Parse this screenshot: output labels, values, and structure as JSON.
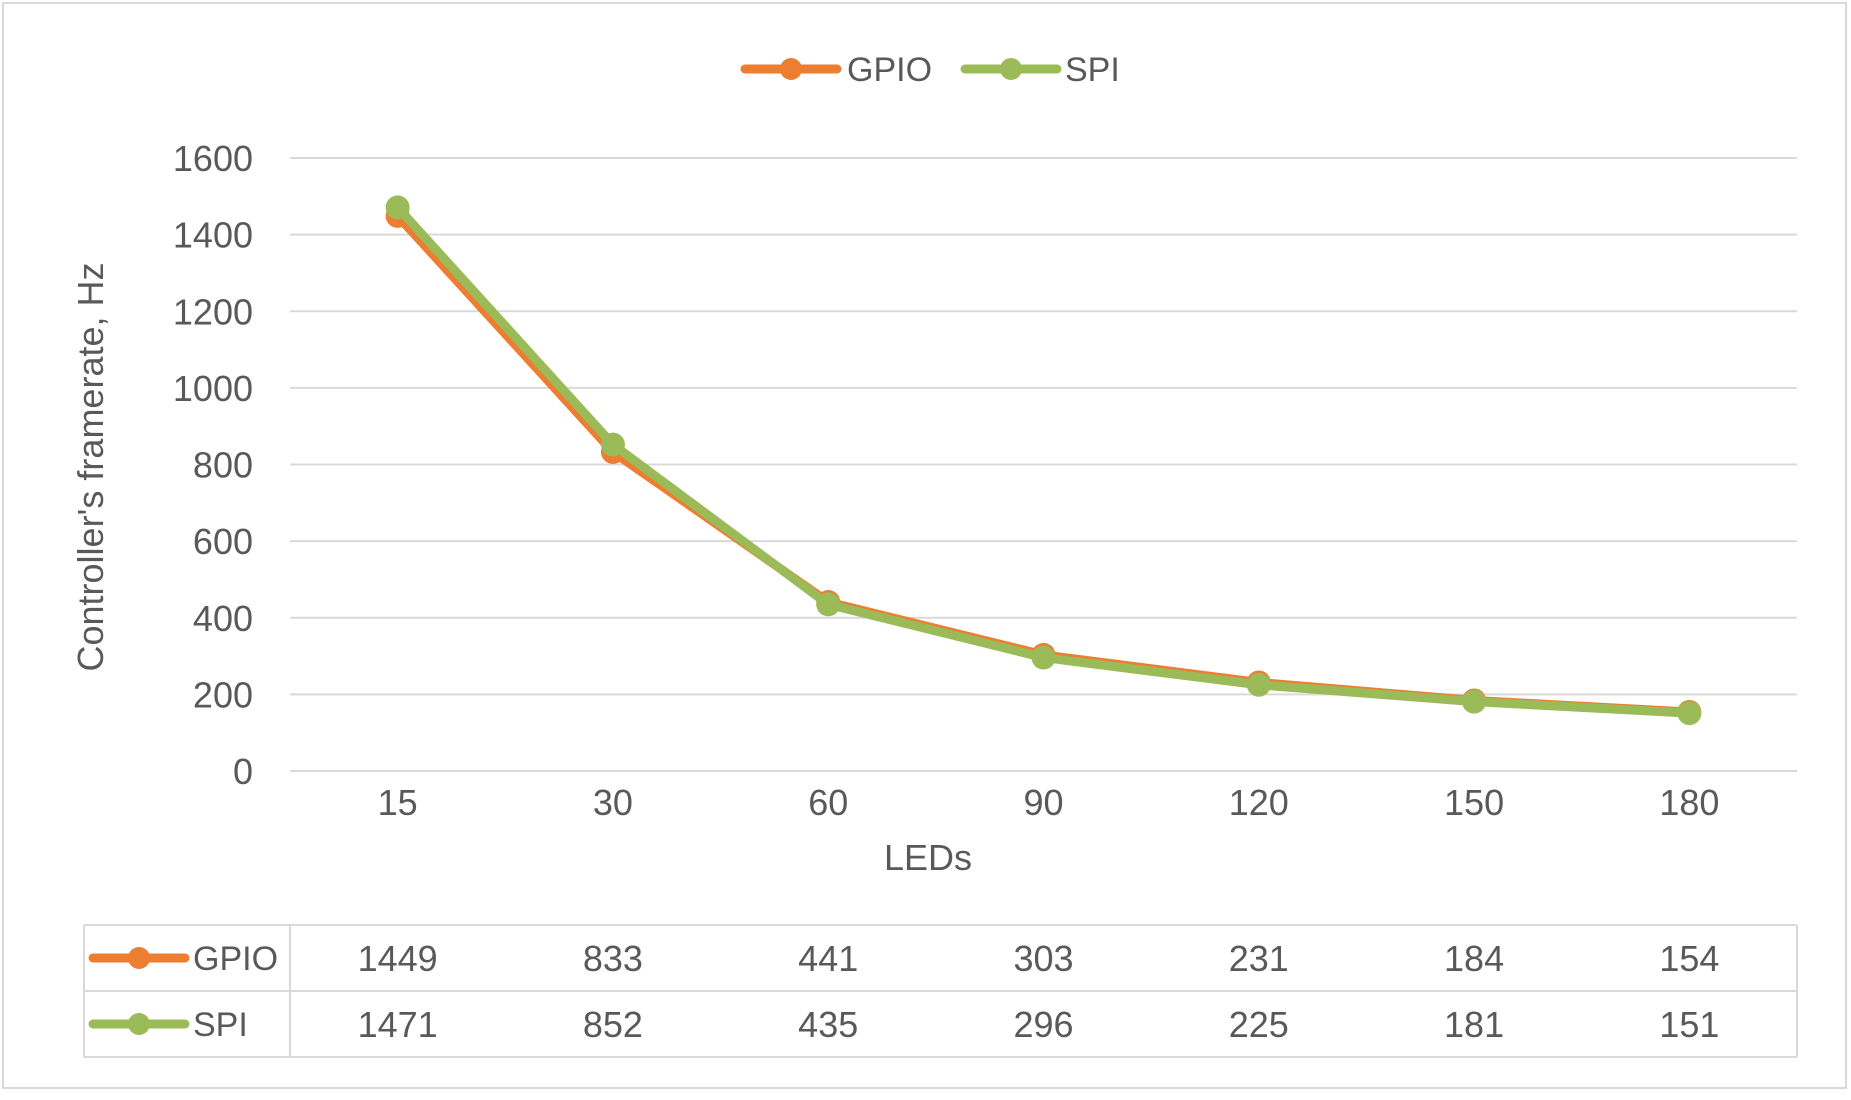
{
  "chart_data": {
    "type": "line",
    "title": "",
    "xlabel": "LEDs",
    "ylabel": "Controller's framerate, Hz",
    "categories": [
      "15",
      "30",
      "60",
      "90",
      "120",
      "150",
      "180"
    ],
    "ylim": [
      0,
      1600
    ],
    "yticks": [
      0,
      200,
      400,
      600,
      800,
      1000,
      1200,
      1400,
      1600
    ],
    "grid": true,
    "legend": "top-center",
    "data_table": true,
    "series": [
      {
        "name": "GPIO",
        "color": "#ED7D31",
        "values": [
          1449,
          833,
          441,
          303,
          231,
          184,
          154
        ]
      },
      {
        "name": "SPI",
        "color": "#9BBB59",
        "values": [
          1471,
          852,
          435,
          296,
          225,
          181,
          151
        ]
      }
    ]
  }
}
